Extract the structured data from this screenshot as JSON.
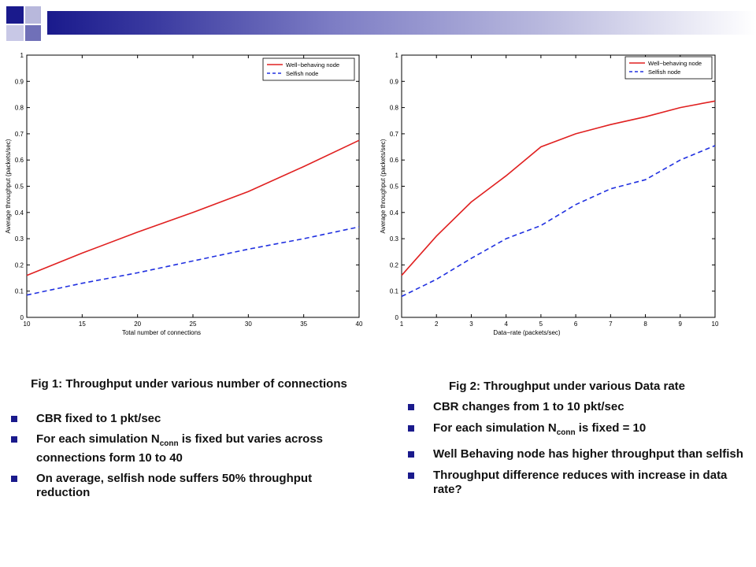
{
  "colors": {
    "well": "#e02020",
    "selfish": "#2030e0",
    "accent": "#1a1a8c"
  },
  "charts": [
    {
      "type": "line",
      "xlabel": "Total number of connections",
      "ylabel": "Average throughput (packets/sec)",
      "xlim": [
        10,
        40
      ],
      "ylim": [
        0,
        1
      ],
      "xticks": [
        10,
        15,
        20,
        25,
        30,
        35,
        40
      ],
      "yticks": [
        0,
        0.1,
        0.2,
        0.3,
        0.4,
        0.5,
        0.6,
        0.7,
        0.8,
        0.9,
        1
      ],
      "legend_position": "top-right",
      "series": [
        {
          "name": "Well−behaving node",
          "style": "solid",
          "color": "#e02020",
          "x": [
            10,
            15,
            20,
            25,
            30,
            35,
            40
          ],
          "y": [
            0.16,
            0.245,
            0.325,
            0.4,
            0.48,
            0.575,
            0.675
          ]
        },
        {
          "name": "Selfish node",
          "style": "dashed",
          "color": "#2030e0",
          "x": [
            10,
            15,
            20,
            25,
            30,
            35,
            40
          ],
          "y": [
            0.085,
            0.13,
            0.17,
            0.215,
            0.26,
            0.3,
            0.345
          ]
        }
      ]
    },
    {
      "type": "line",
      "xlabel": "Data−rate (packets/sec)",
      "ylabel": "Average throughput (packets/sec)",
      "xlim": [
        1,
        10
      ],
      "ylim": [
        0,
        1
      ],
      "xticks": [
        1,
        2,
        3,
        4,
        5,
        6,
        7,
        8,
        9,
        10
      ],
      "yticks": [
        0,
        0.1,
        0.2,
        0.3,
        0.4,
        0.5,
        0.6,
        0.7,
        0.8,
        0.9,
        1
      ],
      "legend_position": "top-right",
      "series": [
        {
          "name": "Well−behaving node",
          "style": "solid",
          "color": "#e02020",
          "x": [
            1,
            2,
            3,
            4,
            5,
            6,
            7,
            8,
            9,
            10
          ],
          "y": [
            0.16,
            0.31,
            0.44,
            0.54,
            0.65,
            0.7,
            0.735,
            0.765,
            0.8,
            0.825
          ]
        },
        {
          "name": "Selfish node",
          "style": "dashed",
          "color": "#2030e0",
          "x": [
            1,
            2,
            3,
            4,
            5,
            6,
            7,
            8,
            9,
            10
          ],
          "y": [
            0.08,
            0.145,
            0.225,
            0.3,
            0.35,
            0.43,
            0.49,
            0.525,
            0.6,
            0.655
          ]
        }
      ]
    }
  ],
  "left": {
    "caption": "Fig 1: Throughput under various number of connections",
    "b1": "CBR fixed to 1 pkt/sec",
    "b2_pre": "For each simulation N",
    "b2_sub": "conn",
    "b2_post": " is fixed but varies across connections form 10 to 40",
    "b3": "On average, selfish node suffers 50% throughput reduction"
  },
  "right": {
    "caption": "Fig 2: Throughput under various Data rate",
    "b1": "CBR changes from 1 to 10 pkt/sec",
    "b2_pre": "For each simulation N",
    "b2_sub": "conn",
    "b2_post": " is fixed = 10",
    "b3": "Well Behaving node has higher throughput than selfish",
    "b4": "Throughput difference reduces with increase in data rate?"
  }
}
